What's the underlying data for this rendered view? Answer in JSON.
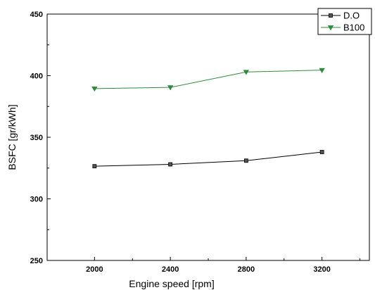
{
  "chart_data": {
    "type": "line",
    "xlabel": "Engine speed [rpm]",
    "ylabel": "BSFC [gr/kWh]",
    "xlim": [
      1750,
      3450
    ],
    "ylim": [
      250,
      450
    ],
    "x_ticks": [
      2000,
      2400,
      2800,
      3200
    ],
    "y_ticks": [
      250,
      300,
      350,
      400,
      450
    ],
    "grid": false,
    "legend_position": "top-right",
    "x": [
      2000,
      2400,
      2800,
      3200
    ],
    "series": [
      {
        "name": "D.O",
        "values": [
          326.5,
          328,
          331,
          338
        ],
        "color": "#000000",
        "marker": "square"
      },
      {
        "name": "B100",
        "values": [
          389.5,
          390.5,
          403,
          404.5
        ],
        "color": "#2e8b3e",
        "marker": "triangle-down"
      }
    ]
  }
}
